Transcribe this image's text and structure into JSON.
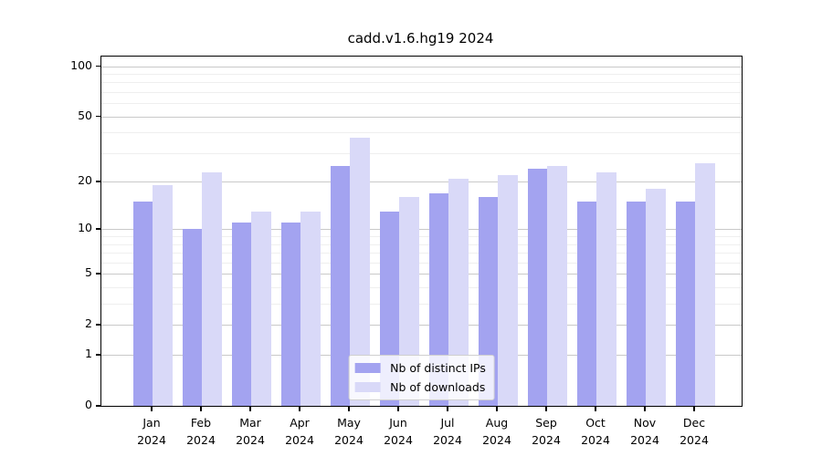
{
  "chart_data": {
    "type": "bar",
    "title": "cadd.v1.6.hg19 2024",
    "categories": [
      "Jan",
      "Feb",
      "Mar",
      "Apr",
      "May",
      "Jun",
      "Jul",
      "Aug",
      "Sep",
      "Oct",
      "Nov",
      "Dec"
    ],
    "year_label": "2024",
    "series": [
      {
        "name": "Nb of distinct IPs",
        "color": "#a3a3f0",
        "values": [
          15,
          10,
          11,
          11,
          25,
          13,
          17,
          16,
          24,
          15,
          15,
          15
        ]
      },
      {
        "name": "Nb of downloads",
        "color": "#d9d9f8",
        "values": [
          19,
          23,
          13,
          13,
          37,
          16,
          21,
          22,
          25,
          23,
          18,
          26
        ]
      }
    ],
    "y_axis": {
      "scale": "log1p",
      "ticks": [
        0,
        1,
        2,
        5,
        10,
        20,
        50,
        100
      ],
      "minor_ticks": [
        3,
        4,
        6,
        7,
        8,
        9,
        30,
        40,
        60,
        70,
        80,
        90
      ],
      "range": [
        0,
        114
      ]
    },
    "legend": {
      "position": "lower center"
    },
    "grid": true,
    "colors": {
      "major_grid": "#c9c9c9",
      "minor_grid": "#efefef",
      "axis": "#000000",
      "background": "#ffffff"
    }
  }
}
